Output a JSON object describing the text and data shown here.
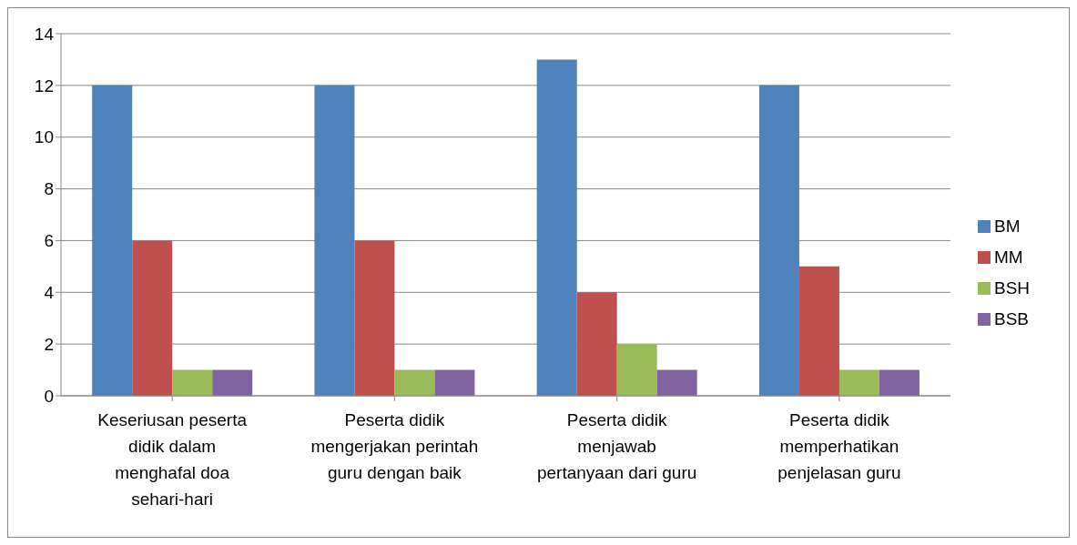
{
  "chart_data": {
    "type": "bar",
    "categories": [
      "Keseriusan peserta\ndidik dalam\nmenghafal doa\nsehari-hari",
      "Peserta didik\nmengerjakan perintah\nguru dengan baik",
      "Peserta didik\nmenjawab\npertanyaan dari guru",
      "Peserta didik\nmemperhatikan\npenjelasan guru"
    ],
    "series": [
      {
        "name": "BM",
        "color": "#4f81bd",
        "values": [
          12,
          12,
          13,
          12
        ]
      },
      {
        "name": "MM",
        "color": "#c0504d",
        "values": [
          6,
          6,
          4,
          5
        ]
      },
      {
        "name": "BSH",
        "color": "#9bbb59",
        "values": [
          1,
          1,
          2,
          1
        ]
      },
      {
        "name": "BSB",
        "color": "#8064a2",
        "values": [
          1,
          1,
          1,
          1
        ]
      }
    ],
    "ylim": [
      0,
      14
    ],
    "yticks": [
      0,
      2,
      4,
      6,
      8,
      10,
      12,
      14
    ],
    "grid": "y",
    "legend": "right"
  }
}
